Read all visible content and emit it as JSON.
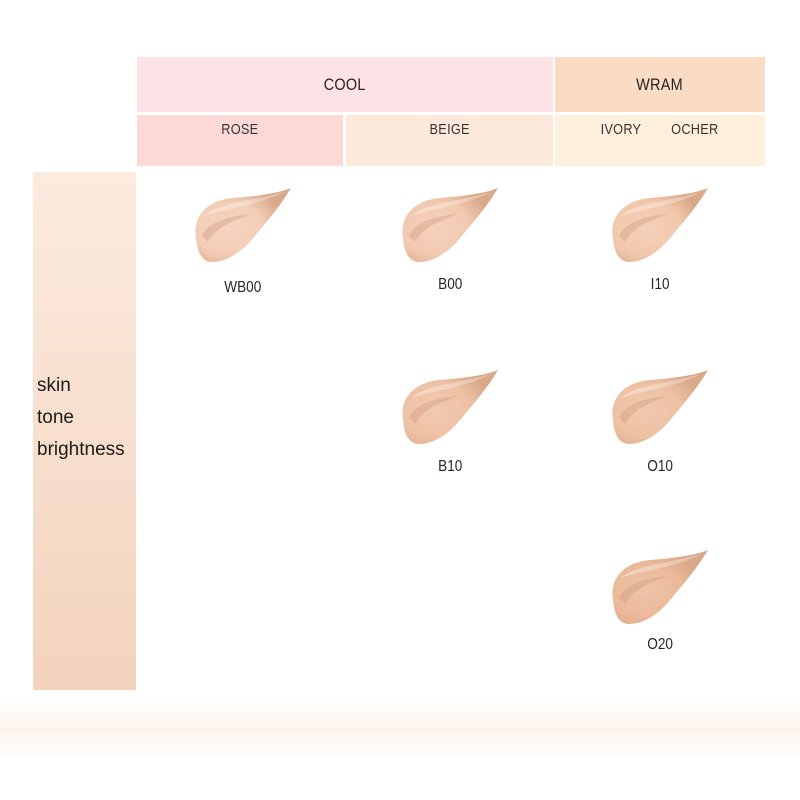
{
  "header": {
    "groups": [
      {
        "label": "COOL",
        "color": "#fde3e6"
      },
      {
        "label": "WRAM",
        "color": "#f9dcc3"
      }
    ],
    "subgroups": [
      {
        "label": "ROSE",
        "color": "#fad9d6"
      },
      {
        "label": "BEIGE",
        "color": "#fde9dc"
      },
      {
        "label": "IVORY",
        "color": "#fef0dd"
      },
      {
        "label": "OCHER",
        "color": "#fef0dd"
      }
    ]
  },
  "axis": {
    "label_lines": [
      "skin",
      "tone",
      "brightness"
    ]
  },
  "shades": [
    {
      "name": "WB00",
      "column": "ROSE",
      "row": 1,
      "color": "#f3cdb6"
    },
    {
      "name": "B00",
      "column": "BEIGE",
      "row": 1,
      "color": "#f2c9b0"
    },
    {
      "name": "I10",
      "column": "IVORY/OCHER",
      "row": 1,
      "color": "#f2c8ad"
    },
    {
      "name": "B10",
      "column": "BEIGE",
      "row": 2,
      "color": "#efc1a4"
    },
    {
      "name": "O10",
      "column": "IVORY/OCHER",
      "row": 2,
      "color": "#eec0a2"
    },
    {
      "name": "O20",
      "column": "IVORY/OCHER",
      "row": 3,
      "color": "#ebb999"
    }
  ]
}
